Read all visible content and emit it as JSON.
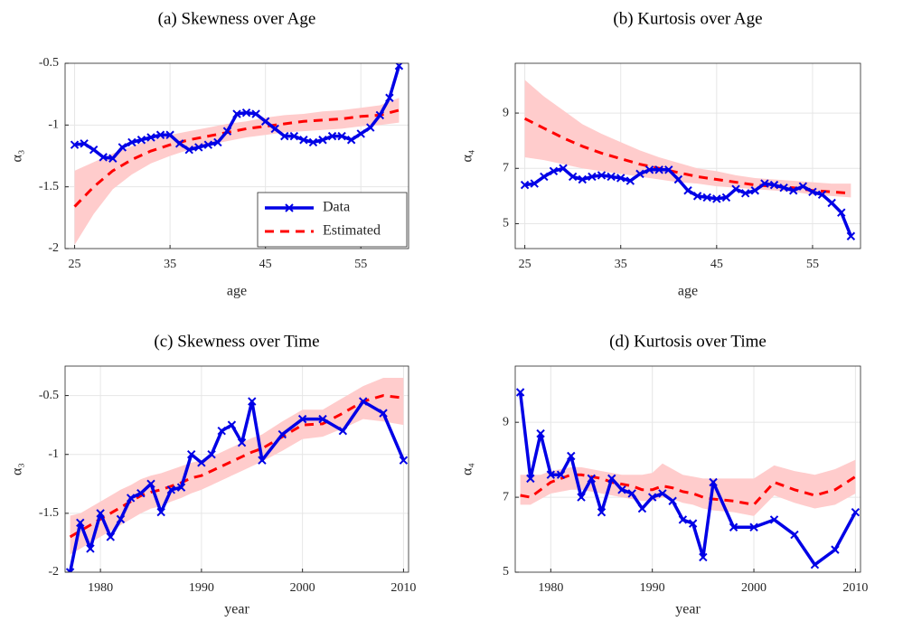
{
  "chart_data": [
    {
      "type": "line",
      "title": "(a) Skewness over Age",
      "xlabel": "age",
      "ylabel": "α₃",
      "xlim": [
        24,
        60
      ],
      "xticks": [
        25,
        35,
        45,
        55
      ],
      "ylim": [
        -2,
        -0.5
      ],
      "yticks": [
        -2,
        -1.5,
        -1,
        -0.5
      ],
      "grid": true,
      "legend": "lower right",
      "series": [
        {
          "name": "Data",
          "color": "#0000e6",
          "marker": "x",
          "x": [
            25,
            26,
            27,
            28,
            29,
            30,
            31,
            32,
            33,
            34,
            35,
            36,
            37,
            38,
            39,
            40,
            41,
            42,
            43,
            44,
            45,
            46,
            47,
            48,
            49,
            50,
            51,
            52,
            53,
            54,
            55,
            56,
            57,
            58,
            59
          ],
          "values": [
            -1.16,
            -1.15,
            -1.2,
            -1.26,
            -1.27,
            -1.18,
            -1.14,
            -1.12,
            -1.1,
            -1.08,
            -1.08,
            -1.15,
            -1.2,
            -1.18,
            -1.16,
            -1.14,
            -1.05,
            -0.91,
            -0.9,
            -0.91,
            -0.97,
            -1.03,
            -1.09,
            -1.09,
            -1.12,
            -1.14,
            -1.12,
            -1.09,
            -1.09,
            -1.12,
            -1.07,
            -1.02,
            -0.92,
            -0.78,
            -0.52
          ]
        },
        {
          "name": "Estimated",
          "color": "#ff0000",
          "dash": true,
          "x": [
            25,
            27,
            29,
            31,
            33,
            35,
            37,
            39,
            41,
            43,
            45,
            47,
            49,
            51,
            53,
            55,
            57,
            59
          ],
          "values": [
            -1.66,
            -1.5,
            -1.37,
            -1.28,
            -1.21,
            -1.16,
            -1.12,
            -1.09,
            -1.06,
            -1.03,
            -1.01,
            -0.99,
            -0.97,
            -0.96,
            -0.95,
            -0.93,
            -0.92,
            -0.88
          ]
        }
      ],
      "band": {
        "color": "#ffcccc",
        "x": [
          25,
          27,
          29,
          31,
          33,
          35,
          37,
          39,
          41,
          43,
          45,
          47,
          49,
          51,
          53,
          55,
          57,
          59
        ],
        "lower": [
          -1.97,
          -1.72,
          -1.52,
          -1.4,
          -1.31,
          -1.25,
          -1.2,
          -1.16,
          -1.13,
          -1.1,
          -1.08,
          -1.06,
          -1.05,
          -1.04,
          -1.03,
          -1.01,
          -1.0,
          -0.98
        ],
        "upper": [
          -1.37,
          -1.3,
          -1.23,
          -1.17,
          -1.12,
          -1.08,
          -1.05,
          -1.02,
          -0.99,
          -0.97,
          -0.94,
          -0.92,
          -0.91,
          -0.89,
          -0.88,
          -0.86,
          -0.84,
          -0.78
        ]
      }
    },
    {
      "type": "line",
      "title": "(b) Kurtosis over Age",
      "xlabel": "age",
      "ylabel": "α₄",
      "xlim": [
        24,
        60
      ],
      "xticks": [
        25,
        35,
        45,
        55
      ],
      "ylim": [
        4.1,
        10.8
      ],
      "yticks": [
        5,
        7,
        9
      ],
      "grid": true,
      "series": [
        {
          "color": "#0000e6",
          "marker": "x",
          "x": [
            25,
            26,
            27,
            28,
            29,
            30,
            31,
            32,
            33,
            34,
            35,
            36,
            37,
            38,
            39,
            40,
            41,
            42,
            43,
            44,
            45,
            46,
            47,
            48,
            49,
            50,
            51,
            52,
            53,
            54,
            55,
            56,
            57,
            58,
            59
          ],
          "values": [
            6.4,
            6.45,
            6.7,
            6.9,
            7.0,
            6.7,
            6.6,
            6.7,
            6.75,
            6.7,
            6.65,
            6.55,
            6.8,
            6.95,
            6.95,
            6.95,
            6.6,
            6.2,
            6.0,
            5.95,
            5.9,
            5.95,
            6.25,
            6.1,
            6.2,
            6.45,
            6.4,
            6.3,
            6.2,
            6.35,
            6.15,
            6.05,
            5.75,
            5.4,
            4.55
          ]
        },
        {
          "color": "#ff0000",
          "dash": true,
          "x": [
            25,
            27,
            29,
            31,
            33,
            35,
            37,
            39,
            41,
            43,
            45,
            47,
            49,
            51,
            53,
            55,
            57,
            59
          ],
          "values": [
            8.8,
            8.45,
            8.1,
            7.8,
            7.55,
            7.35,
            7.15,
            7.0,
            6.85,
            6.7,
            6.6,
            6.5,
            6.4,
            6.35,
            6.3,
            6.2,
            6.15,
            6.1
          ]
        }
      ],
      "band": {
        "color": "#ffcccc",
        "x": [
          25,
          27,
          29,
          31,
          33,
          35,
          37,
          39,
          41,
          43,
          45,
          47,
          49,
          51,
          53,
          55,
          57,
          59
        ],
        "lower": [
          7.4,
          7.3,
          7.15,
          7.0,
          6.9,
          6.8,
          6.7,
          6.6,
          6.5,
          6.45,
          6.35,
          6.3,
          6.25,
          6.2,
          6.15,
          6.05,
          6.0,
          5.95
        ],
        "upper": [
          10.2,
          9.6,
          9.1,
          8.6,
          8.25,
          7.95,
          7.65,
          7.4,
          7.2,
          7.0,
          6.9,
          6.75,
          6.65,
          6.6,
          6.55,
          6.5,
          6.45,
          6.45
        ]
      }
    },
    {
      "type": "line",
      "title": "(c) Skewness over Time",
      "xlabel": "year",
      "ylabel": "α₃",
      "xlim": [
        1976.5,
        2010.5
      ],
      "xticks": [
        1980,
        1990,
        2000,
        2010
      ],
      "ylim": [
        -2,
        -0.25
      ],
      "yticks": [
        -2,
        -1.5,
        -1,
        -0.5
      ],
      "grid": true,
      "series": [
        {
          "color": "#0000e6",
          "marker": "x",
          "x": [
            1977,
            1978,
            1979,
            1980,
            1981,
            1982,
            1983,
            1984,
            1985,
            1986,
            1987,
            1988,
            1989,
            1990,
            1991,
            1992,
            1993,
            1994,
            1995,
            1996,
            1998,
            2000,
            2002,
            2004,
            2006,
            2008,
            2010
          ],
          "values": [
            -2.0,
            -1.58,
            -1.8,
            -1.5,
            -1.7,
            -1.55,
            -1.37,
            -1.33,
            -1.25,
            -1.49,
            -1.3,
            -1.28,
            -1.0,
            -1.07,
            -1.0,
            -0.8,
            -0.75,
            -0.9,
            -0.55,
            -1.05,
            -0.83,
            -0.7,
            -0.7,
            -0.8,
            -0.55,
            -0.65,
            -1.05
          ]
        },
        {
          "color": "#ff0000",
          "dash": true,
          "x": [
            1977,
            1978,
            1979,
            1980,
            1981,
            1982,
            1983,
            1984,
            1985,
            1986,
            1987,
            1988,
            1989,
            1990,
            1991,
            1992,
            1993,
            1994,
            1995,
            1996,
            1998,
            2000,
            2002,
            2004,
            2006,
            2008,
            2010
          ],
          "values": [
            -1.7,
            -1.65,
            -1.6,
            -1.55,
            -1.5,
            -1.45,
            -1.4,
            -1.35,
            -1.32,
            -1.3,
            -1.27,
            -1.24,
            -1.2,
            -1.18,
            -1.14,
            -1.1,
            -1.06,
            -1.02,
            -0.98,
            -0.95,
            -0.85,
            -0.75,
            -0.74,
            -0.65,
            -0.55,
            -0.5,
            -0.52
          ]
        }
      ],
      "band": {
        "color": "#ffcccc",
        "x": [
          1977,
          1978,
          1979,
          1980,
          1981,
          1982,
          1983,
          1984,
          1985,
          1986,
          1987,
          1988,
          1989,
          1990,
          1991,
          1992,
          1993,
          1994,
          1995,
          1996,
          1998,
          2000,
          2002,
          2004,
          2006,
          2008,
          2010
        ],
        "lower": [
          -1.85,
          -1.8,
          -1.75,
          -1.7,
          -1.65,
          -1.6,
          -1.55,
          -1.5,
          -1.46,
          -1.44,
          -1.4,
          -1.37,
          -1.33,
          -1.3,
          -1.26,
          -1.22,
          -1.18,
          -1.14,
          -1.1,
          -1.06,
          -0.97,
          -0.87,
          -0.85,
          -0.78,
          -0.7,
          -0.72,
          -0.75
        ],
        "upper": [
          -1.52,
          -1.5,
          -1.45,
          -1.4,
          -1.35,
          -1.3,
          -1.26,
          -1.21,
          -1.18,
          -1.16,
          -1.13,
          -1.1,
          -1.07,
          -1.05,
          -1.02,
          -0.98,
          -0.94,
          -0.9,
          -0.86,
          -0.83,
          -0.72,
          -0.62,
          -0.62,
          -0.52,
          -0.42,
          -0.35,
          -0.35
        ]
      }
    },
    {
      "type": "line",
      "title": "(d) Kurtosis over Time",
      "xlabel": "year",
      "ylabel": "α₄",
      "xlim": [
        1976.5,
        2010.5
      ],
      "xticks": [
        1980,
        1990,
        2000,
        2010
      ],
      "ylim": [
        5,
        10.5
      ],
      "yticks": [
        5,
        7,
        9
      ],
      "grid": true,
      "series": [
        {
          "color": "#0000e6",
          "marker": "x",
          "x": [
            1977,
            1978,
            1979,
            1980,
            1981,
            1982,
            1983,
            1984,
            1985,
            1986,
            1987,
            1988,
            1989,
            1990,
            1991,
            1992,
            1993,
            1994,
            1995,
            1996,
            1998,
            2000,
            2002,
            2004,
            2006,
            2008,
            2010
          ],
          "values": [
            9.8,
            7.5,
            8.7,
            7.6,
            7.6,
            8.1,
            7.0,
            7.5,
            6.6,
            7.5,
            7.2,
            7.1,
            6.7,
            7.0,
            7.1,
            6.9,
            6.4,
            6.3,
            5.4,
            7.4,
            6.2,
            6.2,
            6.4,
            6.0,
            5.2,
            5.6,
            6.6
          ]
        },
        {
          "color": "#ff0000",
          "dash": true,
          "x": [
            1977,
            1978,
            1979,
            1980,
            1981,
            1982,
            1983,
            1984,
            1985,
            1986,
            1987,
            1988,
            1989,
            1990,
            1991,
            1992,
            1993,
            1994,
            1995,
            1996,
            1998,
            2000,
            2002,
            2004,
            2006,
            2008,
            2010
          ],
          "values": [
            7.05,
            7.0,
            7.2,
            7.4,
            7.5,
            7.6,
            7.6,
            7.55,
            7.5,
            7.4,
            7.35,
            7.3,
            7.2,
            7.2,
            7.3,
            7.25,
            7.15,
            7.1,
            7.0,
            6.95,
            6.9,
            6.8,
            7.4,
            7.2,
            7.05,
            7.2,
            7.55
          ]
        }
      ],
      "band": {
        "color": "#ffcccc",
        "x": [
          1977,
          1978,
          1979,
          1980,
          1981,
          1982,
          1983,
          1984,
          1985,
          1986,
          1987,
          1988,
          1989,
          1990,
          1991,
          1992,
          1993,
          1994,
          1995,
          1996,
          1998,
          2000,
          2002,
          2004,
          2006,
          2008,
          2010
        ],
        "lower": [
          6.8,
          6.8,
          6.95,
          7.1,
          7.15,
          7.2,
          7.2,
          7.15,
          7.1,
          7.05,
          7.0,
          6.95,
          6.9,
          6.9,
          7.0,
          6.95,
          6.85,
          6.8,
          6.7,
          6.65,
          6.6,
          6.5,
          7.05,
          6.85,
          6.7,
          6.8,
          7.1
        ],
        "upper": [
          7.6,
          7.6,
          7.6,
          7.7,
          7.75,
          7.8,
          7.8,
          7.75,
          7.7,
          7.65,
          7.6,
          7.6,
          7.6,
          7.65,
          7.9,
          7.75,
          7.6,
          7.55,
          7.5,
          7.5,
          7.5,
          7.5,
          7.85,
          7.7,
          7.6,
          7.75,
          8.0
        ]
      }
    }
  ]
}
